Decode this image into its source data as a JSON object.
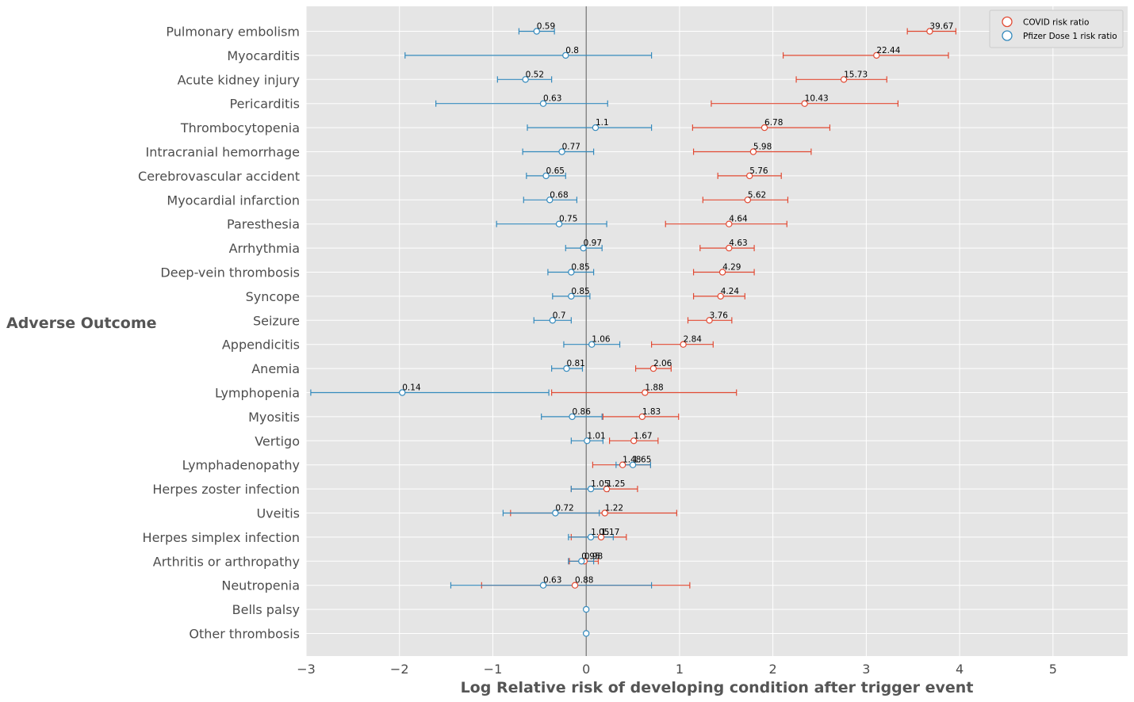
{
  "chart_data": {
    "type": "scatter",
    "subtype": "forest-plot",
    "title": "",
    "xlabel": "Log Relative risk of developing condition after trigger event",
    "ylabel": "Adverse Outcome",
    "xlim": [
      -3,
      5.8
    ],
    "xticks": [
      -3,
      -2,
      -1,
      0,
      1,
      2,
      3,
      4,
      5
    ],
    "xtick_labels": [
      "−3",
      "−2",
      "−1",
      "0",
      "1",
      "2",
      "3",
      "4",
      "5"
    ],
    "grid": true,
    "legend_placement": "top-right",
    "zero_line": 0,
    "categories": [
      "Pulmonary embolism",
      "Myocarditis",
      "Acute kidney injury",
      "Pericarditis",
      "Thrombocytopenia",
      "Intracranial hemorrhage",
      "Cerebrovascular accident",
      "Myocardial infarction",
      "Paresthesia",
      "Arrhythmia",
      "Deep-vein thrombosis",
      "Syncope",
      "Seizure",
      "Appendicitis",
      "Anemia",
      "Lymphopenia",
      "Myositis",
      "Vertigo",
      "Lymphadenopathy",
      "Herpes zoster infection",
      "Uveitis",
      "Herpes simplex infection",
      "Arthritis or arthropathy",
      "Neutropenia",
      "Bells palsy",
      "Other thrombosis"
    ],
    "series": [
      {
        "name": "COVID risk ratio",
        "color": "#e24a33",
        "points": [
          {
            "rr": "39.67",
            "log": 3.68,
            "lo": 3.44,
            "hi": 3.96
          },
          {
            "rr": "22.44",
            "log": 3.11,
            "lo": 2.11,
            "hi": 3.88
          },
          {
            "rr": "15.73",
            "log": 2.76,
            "lo": 2.25,
            "hi": 3.22
          },
          {
            "rr": "10.43",
            "log": 2.34,
            "lo": 1.34,
            "hi": 3.34
          },
          {
            "rr": "6.78",
            "log": 1.91,
            "lo": 1.14,
            "hi": 2.61
          },
          {
            "rr": "5.98",
            "log": 1.79,
            "lo": 1.15,
            "hi": 2.41
          },
          {
            "rr": "5.76",
            "log": 1.75,
            "lo": 1.41,
            "hi": 2.09
          },
          {
            "rr": "5.62",
            "log": 1.73,
            "lo": 1.25,
            "hi": 2.16
          },
          {
            "rr": "4.64",
            "log": 1.53,
            "lo": 0.85,
            "hi": 2.15
          },
          {
            "rr": "4.63",
            "log": 1.53,
            "lo": 1.22,
            "hi": 1.8
          },
          {
            "rr": "4.29",
            "log": 1.46,
            "lo": 1.15,
            "hi": 1.8
          },
          {
            "rr": "4.24",
            "log": 1.44,
            "lo": 1.15,
            "hi": 1.7
          },
          {
            "rr": "3.76",
            "log": 1.32,
            "lo": 1.09,
            "hi": 1.56
          },
          {
            "rr": "2.84",
            "log": 1.04,
            "lo": 0.7,
            "hi": 1.36
          },
          {
            "rr": "2.06",
            "log": 0.72,
            "lo": 0.53,
            "hi": 0.91
          },
          {
            "rr": "1.88",
            "log": 0.63,
            "lo": -0.37,
            "hi": 1.61
          },
          {
            "rr": "1.83",
            "log": 0.6,
            "lo": 0.18,
            "hi": 0.99
          },
          {
            "rr": "1.67",
            "log": 0.51,
            "lo": 0.25,
            "hi": 0.77
          },
          {
            "rr": "1.48",
            "log": 0.39,
            "lo": 0.07,
            "hi": 0.69
          },
          {
            "rr": "1.25",
            "log": 0.22,
            "lo": -0.16,
            "hi": 0.55
          },
          {
            "rr": "1.22",
            "log": 0.2,
            "lo": -0.81,
            "hi": 0.97
          },
          {
            "rr": "1.17",
            "log": 0.16,
            "lo": -0.16,
            "hi": 0.43
          },
          {
            "rr": "0.98",
            "log": -0.02,
            "lo": -0.18,
            "hi": 0.13
          },
          {
            "rr": "0.88",
            "log": -0.12,
            "lo": -1.12,
            "hi": 1.11
          },
          {
            "rr": "",
            "log": null,
            "lo": null,
            "hi": null
          },
          {
            "rr": "",
            "log": null,
            "lo": null,
            "hi": null
          }
        ]
      },
      {
        "name": "Pfizer Dose 1 risk ratio",
        "color": "#348abd",
        "points": [
          {
            "rr": "0.59",
            "log": -0.53,
            "lo": -0.72,
            "hi": -0.34
          },
          {
            "rr": "0.8",
            "log": -0.22,
            "lo": -1.94,
            "hi": 0.7
          },
          {
            "rr": "0.52",
            "log": -0.65,
            "lo": -0.95,
            "hi": -0.37
          },
          {
            "rr": "0.63",
            "log": -0.46,
            "lo": -1.61,
            "hi": 0.23
          },
          {
            "rr": "1.1",
            "log": 0.1,
            "lo": -0.63,
            "hi": 0.7
          },
          {
            "rr": "0.77",
            "log": -0.26,
            "lo": -0.68,
            "hi": 0.08
          },
          {
            "rr": "0.65",
            "log": -0.43,
            "lo": -0.64,
            "hi": -0.22
          },
          {
            "rr": "0.68",
            "log": -0.39,
            "lo": -0.67,
            "hi": -0.1
          },
          {
            "rr": "0.75",
            "log": -0.29,
            "lo": -0.96,
            "hi": 0.22
          },
          {
            "rr": "0.97",
            "log": -0.03,
            "lo": -0.22,
            "hi": 0.17
          },
          {
            "rr": "0.85",
            "log": -0.16,
            "lo": -0.41,
            "hi": 0.08
          },
          {
            "rr": "0.85",
            "log": -0.16,
            "lo": -0.36,
            "hi": 0.04
          },
          {
            "rr": "0.7",
            "log": -0.36,
            "lo": -0.56,
            "hi": -0.16
          },
          {
            "rr": "1.06",
            "log": 0.06,
            "lo": -0.24,
            "hi": 0.36
          },
          {
            "rr": "0.81",
            "log": -0.21,
            "lo": -0.37,
            "hi": -0.04
          },
          {
            "rr": "0.14",
            "log": -1.97,
            "lo": -2.95,
            "hi": -0.4
          },
          {
            "rr": "0.86",
            "log": -0.15,
            "lo": -0.48,
            "hi": 0.17
          },
          {
            "rr": "1.01",
            "log": 0.01,
            "lo": -0.16,
            "hi": 0.18
          },
          {
            "rr": "1.65",
            "log": 0.5,
            "lo": 0.32,
            "hi": 0.69
          },
          {
            "rr": "1.05",
            "log": 0.05,
            "lo": -0.16,
            "hi": 0.24
          },
          {
            "rr": "0.72",
            "log": -0.33,
            "lo": -0.89,
            "hi": 0.14
          },
          {
            "rr": "1.05",
            "log": 0.05,
            "lo": -0.19,
            "hi": 0.29
          },
          {
            "rr": "0.95",
            "log": -0.05,
            "lo": -0.19,
            "hi": 0.08
          },
          {
            "rr": "0.63",
            "log": -0.46,
            "lo": -1.45,
            "hi": 0.7
          },
          {
            "rr": "",
            "log": 0.0,
            "lo": null,
            "hi": null
          },
          {
            "rr": "",
            "log": 0.0,
            "lo": null,
            "hi": null
          }
        ]
      }
    ]
  }
}
